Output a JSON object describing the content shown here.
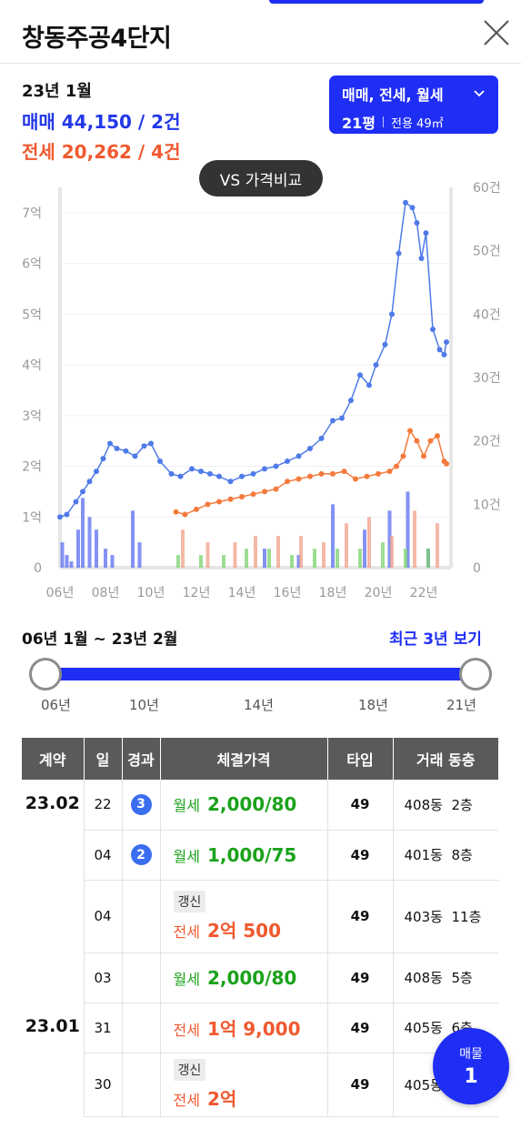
{
  "header": {
    "title": "창동주공4단지"
  },
  "summary": {
    "date": "23년 1월",
    "sale": "매매 44,150 / 2건",
    "jeonse": "전세 20,262 / 4건"
  },
  "filter": {
    "types": "매매, 전세, 월세",
    "pyeong": "21평",
    "area": "전용 49㎡"
  },
  "compare_label": "VS 가격비교",
  "colors": {
    "accent": "#1f2ef5",
    "sale": "#4f7be8",
    "jeonse": "#f47a3c",
    "monthly": "#3fa83a"
  },
  "chart_data": {
    "type": "line",
    "x_tick_labels": [
      "06년",
      "08년",
      "10년",
      "12년",
      "14년",
      "16년",
      "18년",
      "20년",
      "22년"
    ],
    "x_ticks": [
      2006,
      2008,
      2010,
      2012,
      2014,
      2016,
      2018,
      2020,
      2022
    ],
    "xlim": [
      2006,
      2023.2
    ],
    "left_axis": {
      "ticks": [
        0,
        1,
        2,
        3,
        4,
        5,
        6,
        7
      ],
      "labels": [
        "0",
        "1억",
        "2억",
        "3억",
        "4억",
        "5억",
        "6억",
        "7억"
      ],
      "ylim": [
        0,
        7.5
      ]
    },
    "right_axis": {
      "ticks": [
        0,
        10,
        20,
        30,
        40,
        50,
        60
      ],
      "labels": [
        "0",
        "10건",
        "20건",
        "30건",
        "40건",
        "50건",
        "60건"
      ],
      "ylim": [
        0,
        60
      ]
    },
    "series": [
      {
        "color": "#4f7be8",
        "x": [
          2006.0,
          2006.3,
          2006.7,
          2007.0,
          2007.3,
          2007.6,
          2007.9,
          2008.2,
          2008.5,
          2008.9,
          2009.3,
          2009.7,
          2010.0,
          2010.4,
          2010.9,
          2011.3,
          2011.8,
          2012.2,
          2012.6,
          2013.0,
          2013.5,
          2014.0,
          2014.5,
          2015.0,
          2015.5,
          2016.0,
          2016.5,
          2017.0,
          2017.5,
          2018.0,
          2018.4,
          2018.8,
          2019.2,
          2019.6,
          2019.9,
          2020.3,
          2020.6,
          2020.9,
          2021.2,
          2021.5,
          2021.7,
          2021.9,
          2022.1,
          2022.4,
          2022.7,
          2022.9,
          2023.0
        ],
        "y": [
          1.0,
          1.05,
          1.3,
          1.5,
          1.7,
          1.9,
          2.15,
          2.45,
          2.35,
          2.3,
          2.2,
          2.4,
          2.45,
          2.1,
          1.85,
          1.8,
          1.95,
          1.9,
          1.85,
          1.8,
          1.7,
          1.8,
          1.85,
          1.95,
          2.0,
          2.1,
          2.2,
          2.35,
          2.55,
          2.9,
          2.95,
          3.3,
          3.8,
          3.6,
          4.0,
          4.4,
          5.0,
          6.2,
          7.2,
          7.1,
          6.8,
          6.1,
          6.6,
          4.7,
          4.3,
          4.2,
          4.45
        ]
      },
      {
        "color": "#f47a3c",
        "x": [
          2011.1,
          2011.5,
          2012.0,
          2012.5,
          2013.0,
          2013.5,
          2014.0,
          2014.5,
          2015.0,
          2015.5,
          2016.0,
          2016.5,
          2017.0,
          2017.5,
          2018.0,
          2018.5,
          2019.0,
          2019.5,
          2020.0,
          2020.5,
          2020.8,
          2021.1,
          2021.4,
          2021.7,
          2022.0,
          2022.3,
          2022.6,
          2022.9,
          2023.0
        ],
        "y": [
          1.1,
          1.05,
          1.15,
          1.25,
          1.3,
          1.35,
          1.4,
          1.45,
          1.5,
          1.55,
          1.7,
          1.75,
          1.8,
          1.85,
          1.85,
          1.9,
          1.75,
          1.8,
          1.85,
          1.9,
          2.0,
          2.2,
          2.7,
          2.5,
          2.2,
          2.5,
          2.6,
          2.1,
          2.05
        ]
      }
    ],
    "volume_bars": [
      {
        "color": "#5b6ef0",
        "x": [
          2006.1,
          2006.3,
          2006.5,
          2006.8,
          2007.0,
          2007.3,
          2007.6,
          2008.0,
          2008.3,
          2009.2,
          2009.5,
          2015.0,
          2016.5,
          2018.0,
          2019.4,
          2020.5,
          2021.3,
          2022.2
        ],
        "y": [
          4,
          2,
          1,
          6,
          11,
          8,
          6,
          3,
          2,
          9,
          4,
          3,
          2,
          10,
          6,
          9,
          12,
          3
        ]
      },
      {
        "color": "#f0a08a",
        "x": [
          2011.4,
          2012.5,
          2013.7,
          2014.6,
          2015.6,
          2016.6,
          2017.6,
          2018.6,
          2019.6,
          2020.6,
          2021.6,
          2022.6
        ],
        "y": [
          6,
          4,
          4,
          5,
          5,
          5,
          4,
          7,
          8,
          5,
          9,
          7
        ]
      },
      {
        "color": "#7bd36c",
        "x": [
          2011.2,
          2012.2,
          2013.2,
          2014.2,
          2015.2,
          2016.2,
          2017.2,
          2018.2,
          2019.2,
          2020.2,
          2021.2,
          2022.2
        ],
        "y": [
          2,
          2,
          2,
          3,
          3,
          2,
          3,
          3,
          3,
          4,
          3,
          3
        ]
      }
    ]
  },
  "range": {
    "label": "06년 1월 ~ 23년 2월",
    "recent_link": "최근 3년 보기",
    "ticks": [
      "06년",
      "10년",
      "14년",
      "18년",
      "21년"
    ]
  },
  "table": {
    "headers": [
      "계약",
      "일",
      "경과",
      "체결가격",
      "타입",
      "거래 동층"
    ],
    "rows": [
      {
        "month": "23.02",
        "day": "22",
        "badge": "3",
        "tag": "",
        "kind": "월세",
        "amount": "2,000/80",
        "color": "green",
        "type": "49",
        "dong": "408동",
        "floor": "2층"
      },
      {
        "month": "",
        "day": "04",
        "badge": "2",
        "tag": "",
        "kind": "월세",
        "amount": "1,000/75",
        "color": "green",
        "type": "49",
        "dong": "401동",
        "floor": "8층"
      },
      {
        "month": "",
        "day": "04",
        "badge": "",
        "tag": "갱신",
        "kind": "전세",
        "amount": "2억 500",
        "color": "red",
        "type": "49",
        "dong": "403동",
        "floor": "11층"
      },
      {
        "month": "",
        "day": "03",
        "badge": "",
        "tag": "",
        "kind": "월세",
        "amount": "2,000/80",
        "color": "green",
        "type": "49",
        "dong": "408동",
        "floor": "5층"
      },
      {
        "month": "23.01",
        "day": "31",
        "badge": "",
        "tag": "",
        "kind": "전세",
        "amount": "1억 9,000",
        "color": "red",
        "type": "49",
        "dong": "405동",
        "floor": "6층"
      },
      {
        "month": "",
        "day": "30",
        "badge": "",
        "tag": "갱신",
        "kind": "전세",
        "amount": "2억",
        "color": "red",
        "type": "49",
        "dong": "405동",
        "floor": ""
      }
    ]
  },
  "listing": {
    "label": "매물",
    "count": "1"
  }
}
